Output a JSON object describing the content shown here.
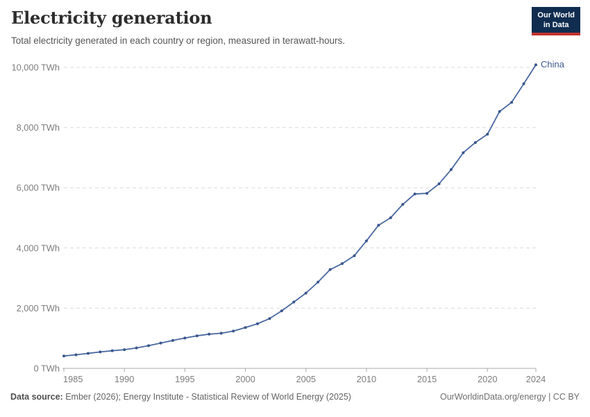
{
  "header": {
    "logo": {
      "line1": "Our World",
      "line2": "in Data"
    }
  },
  "chart_data": {
    "type": "line",
    "title": "Electricity generation",
    "subtitle": "Total electricity generated in each country or region, measured in terawatt-hours.",
    "unit": "TWh",
    "xlabel": "",
    "ylabel": "",
    "xlim": [
      1985,
      2024
    ],
    "ylim": [
      0,
      10000
    ],
    "grid": "horizontal-dashed",
    "legend_position": "end-of-line-label",
    "x": [
      1985,
      1986,
      1987,
      1988,
      1989,
      1990,
      1991,
      1992,
      1993,
      1994,
      1995,
      1996,
      1997,
      1998,
      1999,
      2000,
      2001,
      2002,
      2003,
      2004,
      2005,
      2006,
      2007,
      2008,
      2009,
      2010,
      2011,
      2012,
      2013,
      2014,
      2015,
      2016,
      2017,
      2018,
      2019,
      2020,
      2021,
      2022,
      2023,
      2024
    ],
    "x_ticks": [
      1985,
      1990,
      1995,
      2000,
      2005,
      2010,
      2015,
      2020,
      2024
    ],
    "y_ticks": [
      0,
      2000,
      4000,
      6000,
      8000,
      10000
    ],
    "y_tick_labels": [
      "0 TWh",
      "2,000 TWh",
      "4,000 TWh",
      "6,000 TWh",
      "8,000 TWh",
      "10,000 TWh"
    ],
    "series": [
      {
        "name": "China",
        "color": "#4a68a0",
        "values": [
          411,
          451,
          497,
          545,
          585,
          621,
          678,
          754,
          839,
          928,
          1008,
          1081,
          1136,
          1167,
          1239,
          1356,
          1481,
          1654,
          1911,
          2203,
          2500,
          2866,
          3282,
          3482,
          3742,
          4236,
          4755,
          5003,
          5447,
          5795,
          5815,
          6133,
          6604,
          7166,
          7503,
          7779,
          8534,
          8840,
          9456,
          10087
        ]
      }
    ]
  },
  "footer": {
    "source_label": "Data source:",
    "source_text": " Ember (2026); Energy Institute - Statistical Review of World Energy (2025)",
    "attribution": "OurWorldinData.org/energy | CC BY"
  },
  "colors": {
    "line": "#4a68a0",
    "marker": "#39568c",
    "end_label": "#3d5a8e",
    "grid": "#dcdcdc",
    "axis": "#a9a9a9",
    "tick_label": "#7d7d7d",
    "title": "#2d2d2d",
    "subtitle": "#565656",
    "footer_text": "#636363",
    "logo_bg": "#102d50",
    "logo_accent": "#c5322d"
  }
}
